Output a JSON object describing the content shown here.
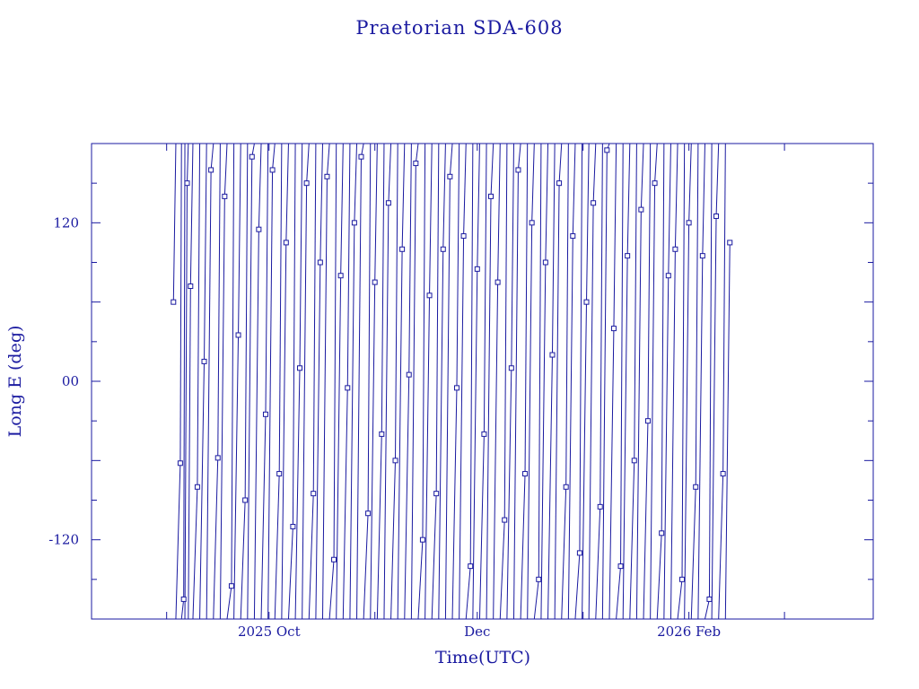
{
  "chart_data": {
    "type": "line",
    "title": "Praetorian SDA-608",
    "xlabel": "Time(UTC)",
    "ylabel": "Long E (deg)",
    "x_tick_labels": [
      "2025 Oct",
      "Dec",
      "2026 Feb"
    ],
    "x_tick_dates": [
      "2025-10-01",
      "2025-12-01",
      "2026-02-01"
    ],
    "xlim": [
      "2025-08-10",
      "2026-03-27"
    ],
    "y_tick_labels": [
      "120",
      "00",
      "-120"
    ],
    "y_tick_values": [
      120,
      0,
      -120
    ],
    "ylim": [
      -180,
      180
    ],
    "grid": false,
    "marker": "square",
    "color": "#1a1aa0",
    "series": [
      {
        "x": [
          "2025-09-03",
          "2025-09-05",
          "2025-09-06",
          "2025-09-07",
          "2025-09-08",
          "2025-09-10",
          "2025-09-12",
          "2025-09-14",
          "2025-09-16",
          "2025-09-18",
          "2025-09-20",
          "2025-09-22",
          "2025-09-24",
          "2025-09-26",
          "2025-09-28",
          "2025-09-30",
          "2025-10-02",
          "2025-10-04",
          "2025-10-06",
          "2025-10-08",
          "2025-10-10",
          "2025-10-12",
          "2025-10-14",
          "2025-10-16",
          "2025-10-18",
          "2025-10-20",
          "2025-10-22",
          "2025-10-24",
          "2025-10-26",
          "2025-10-28",
          "2025-10-30",
          "2025-11-01",
          "2025-11-03",
          "2025-11-05",
          "2025-11-07",
          "2025-11-09",
          "2025-11-11",
          "2025-11-13",
          "2025-11-15",
          "2025-11-17",
          "2025-11-19",
          "2025-11-21",
          "2025-11-23",
          "2025-11-25",
          "2025-11-27",
          "2025-11-29",
          "2025-12-01",
          "2025-12-03",
          "2025-12-05",
          "2025-12-07",
          "2025-12-09",
          "2025-12-11",
          "2025-12-13",
          "2025-12-15",
          "2025-12-17",
          "2025-12-19",
          "2025-12-21",
          "2025-12-23",
          "2025-12-25",
          "2025-12-27",
          "2025-12-29",
          "2025-12-31",
          "2026-01-02",
          "2026-01-04",
          "2026-01-06",
          "2026-01-08",
          "2026-01-10",
          "2026-01-12",
          "2026-01-14",
          "2026-01-16",
          "2026-01-18",
          "2026-01-20",
          "2026-01-22",
          "2026-01-24",
          "2026-01-26",
          "2026-01-28",
          "2026-01-30",
          "2026-02-01",
          "2026-02-03",
          "2026-02-05",
          "2026-02-07",
          "2026-02-09",
          "2026-02-11",
          "2026-02-13"
        ],
        "y": [
          60,
          -62,
          -165,
          150,
          72,
          -80,
          15,
          160,
          -58,
          140,
          -155,
          35,
          -90,
          170,
          115,
          -25,
          160,
          -70,
          105,
          -110,
          10,
          150,
          -85,
          90,
          155,
          -135,
          80,
          -5,
          120,
          170,
          -100,
          75,
          -40,
          135,
          -60,
          100,
          5,
          165,
          -120,
          65,
          -85,
          100,
          155,
          -5,
          110,
          -140,
          85,
          -40,
          140,
          75,
          -105,
          10,
          160,
          -70,
          120,
          -150,
          90,
          20,
          150,
          -80,
          110,
          -130,
          60,
          135,
          -95,
          175,
          40,
          -140,
          95,
          -60,
          130,
          -30,
          150,
          -115,
          80,
          100,
          -150,
          120,
          -80,
          95,
          -165,
          125,
          -70,
          105
        ]
      }
    ]
  }
}
